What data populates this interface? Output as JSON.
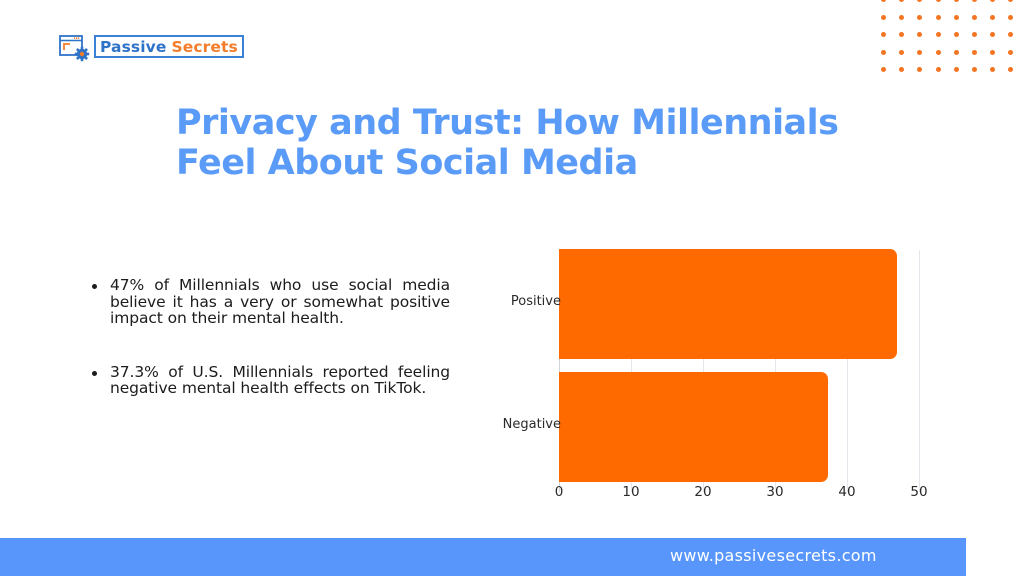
{
  "brand": {
    "name_part1": "Passive",
    "name_part2": "Secrets",
    "icon": "browser-gear-icon",
    "primary_color": "#2f73c9",
    "accent_color": "#f37d2b"
  },
  "header": {
    "title": "Privacy and Trust: How Millennials Feel About Social Media",
    "title_color": "#5b9bf8"
  },
  "bullets": [
    {
      "text": "47% of Millennials who use social media believe it has a very or somewhat positive impact on their mental health."
    },
    {
      "text": "37.3% of U.S. Millennials reported feeling negative mental health effects on TikTok."
    }
  ],
  "chart_data": {
    "type": "bar",
    "orientation": "horizontal",
    "title": "",
    "categories": [
      "Positive",
      "Negative"
    ],
    "values": [
      47,
      37.3
    ],
    "bar_color": "#ff6a00",
    "xlabel": "",
    "ylabel": "",
    "xlim": [
      0,
      50
    ],
    "x_ticks": [
      "0",
      "10",
      "20",
      "30",
      "40",
      "50"
    ],
    "grid": true,
    "legend": null
  },
  "footer": {
    "url": "www.passivesecrets.com",
    "background": "#5896fb"
  }
}
